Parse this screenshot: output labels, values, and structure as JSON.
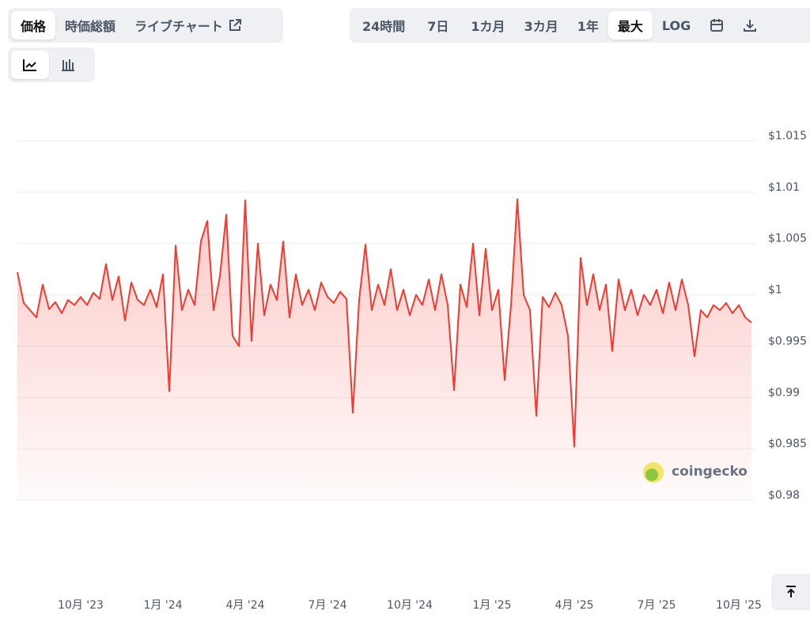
{
  "toolbar": {
    "left": [
      "価格",
      "時価総額",
      "ライブチャート"
    ],
    "right": [
      "24時間",
      "7日",
      "1カ月",
      "3カ月",
      "1年",
      "最大",
      "LOG"
    ]
  },
  "watermark": "coingecko",
  "chart_data": {
    "type": "line",
    "color": "#f23a30",
    "grid": true,
    "ylim": [
      0.98,
      1.015
    ],
    "yticks": [
      {
        "value": 0.98,
        "label": "$0.98"
      },
      {
        "value": 0.985,
        "label": "$0.985"
      },
      {
        "value": 0.99,
        "label": "$0.99"
      },
      {
        "value": 0.995,
        "label": "$0.995"
      },
      {
        "value": 1,
        "label": "$1"
      },
      {
        "value": 1.005,
        "label": "$1.005"
      },
      {
        "value": 1.01,
        "label": "$1.01"
      },
      {
        "value": 1.015,
        "label": "$1.015"
      }
    ],
    "categories": [
      null,
      null,
      null,
      null,
      null,
      null,
      null,
      null,
      null,
      null,
      "10月 '23",
      null,
      null,
      null,
      null,
      null,
      null,
      null,
      null,
      null,
      null,
      null,
      null,
      "1月 '24",
      null,
      null,
      null,
      null,
      null,
      null,
      null,
      null,
      null,
      null,
      null,
      null,
      "4月 '24",
      null,
      null,
      null,
      null,
      null,
      null,
      null,
      null,
      null,
      null,
      null,
      null,
      "7月 '24",
      null,
      null,
      null,
      null,
      null,
      null,
      null,
      null,
      null,
      null,
      null,
      null,
      "10月 '24",
      null,
      null,
      null,
      null,
      null,
      null,
      null,
      null,
      null,
      null,
      null,
      null,
      "1月 '25",
      null,
      null,
      null,
      null,
      null,
      null,
      null,
      null,
      null,
      null,
      null,
      null,
      "4月 '25",
      null,
      null,
      null,
      null,
      null,
      null,
      null,
      null,
      null,
      null,
      null,
      null,
      "7月 '25",
      null,
      null,
      null,
      null,
      null,
      null,
      null,
      null,
      null,
      null,
      null,
      null,
      "10月 '25",
      null,
      null
    ],
    "values": [
      1.0022,
      0.9992,
      0.9985,
      0.9978,
      1.001,
      0.9986,
      0.9993,
      0.9982,
      0.9995,
      0.999,
      0.9998,
      0.999,
      1.0002,
      0.9996,
      1.003,
      0.9995,
      1.0018,
      0.9975,
      1.0012,
      0.9995,
      0.999,
      1.0005,
      0.9988,
      1.002,
      0.9906,
      1.0048,
      0.9985,
      1.0005,
      0.999,
      1.0052,
      1.0072,
      0.9985,
      1.0018,
      1.0078,
      0.996,
      0.995,
      1.0092,
      0.9955,
      1.005,
      0.998,
      1.001,
      0.9995,
      1.0052,
      0.9978,
      1.002,
      0.999,
      1.0005,
      0.9985,
      1.0012,
      0.9998,
      0.9992,
      1.0003,
      0.9996,
      0.9885,
      0.9995,
      1.0049,
      0.9985,
      1.001,
      0.999,
      1.0025,
      0.9985,
      1.0005,
      0.998,
      1.0,
      0.999,
      1.0015,
      0.9985,
      1.002,
      0.999,
      0.9907,
      1.001,
      0.9988,
      1.005,
      0.998,
      1.0045,
      0.9985,
      1.0005,
      0.9917,
      0.999,
      1.0093,
      1.0,
      0.9985,
      0.9882,
      0.9998,
      0.9988,
      1.0002,
      0.999,
      0.996,
      0.9852,
      1.0036,
      0.999,
      1.002,
      0.9985,
      1.001,
      0.9945,
      1.0015,
      0.9985,
      1.0005,
      0.998,
      1.0,
      0.999,
      1.0005,
      0.9982,
      1.0012,
      0.9985,
      1.0015,
      0.999,
      0.994,
      0.9985,
      0.9978,
      0.999,
      0.9985,
      0.9992,
      0.9982,
      0.999,
      0.9978,
      0.9973
    ]
  }
}
